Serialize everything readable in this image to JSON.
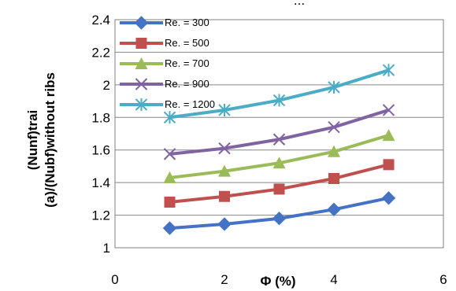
{
  "header_text": "...",
  "chart_data": {
    "type": "line",
    "xlabel": "Φ (%)",
    "ylabel_lines": [
      "(Nunf)trai",
      "(a)/(Nubf)without ribs"
    ],
    "xlim": [
      0,
      6
    ],
    "ylim": [
      1,
      2.4
    ],
    "xticks": [
      0,
      2,
      4,
      6
    ],
    "yticks": [
      1,
      1.2,
      1.4,
      1.6,
      1.8,
      2,
      2.2,
      2.4
    ],
    "ytick_labels": [
      "1",
      "1.2",
      "1.4",
      "1.6",
      "1.8",
      "2",
      "2.2",
      "2.4"
    ],
    "grid": "horizontal",
    "legend": "top-left",
    "series": [
      {
        "name": "Re. = 300",
        "color": "#4472C4",
        "marker": "diamond",
        "x": [
          1,
          2,
          3,
          4,
          5
        ],
        "y": [
          1.12,
          1.145,
          1.18,
          1.235,
          1.305
        ]
      },
      {
        "name": "Re. = 500",
        "color": "#C0504D",
        "marker": "square",
        "x": [
          1,
          2,
          3,
          4,
          5
        ],
        "y": [
          1.28,
          1.315,
          1.36,
          1.425,
          1.51
        ]
      },
      {
        "name": "Re. = 700",
        "color": "#9BBB59",
        "marker": "triangle",
        "x": [
          1,
          2,
          3,
          4,
          5
        ],
        "y": [
          1.43,
          1.47,
          1.52,
          1.59,
          1.69
        ]
      },
      {
        "name": "Re. = 900",
        "color": "#8064A2",
        "marker": "x",
        "x": [
          1,
          2,
          3,
          4,
          5
        ],
        "y": [
          1.575,
          1.61,
          1.665,
          1.74,
          1.845
        ]
      },
      {
        "name": "Re. = 1200",
        "color": "#4BACC6",
        "marker": "star",
        "x": [
          1,
          2,
          3,
          4,
          5
        ],
        "y": [
          1.8,
          1.845,
          1.905,
          1.985,
          2.09
        ]
      }
    ]
  }
}
